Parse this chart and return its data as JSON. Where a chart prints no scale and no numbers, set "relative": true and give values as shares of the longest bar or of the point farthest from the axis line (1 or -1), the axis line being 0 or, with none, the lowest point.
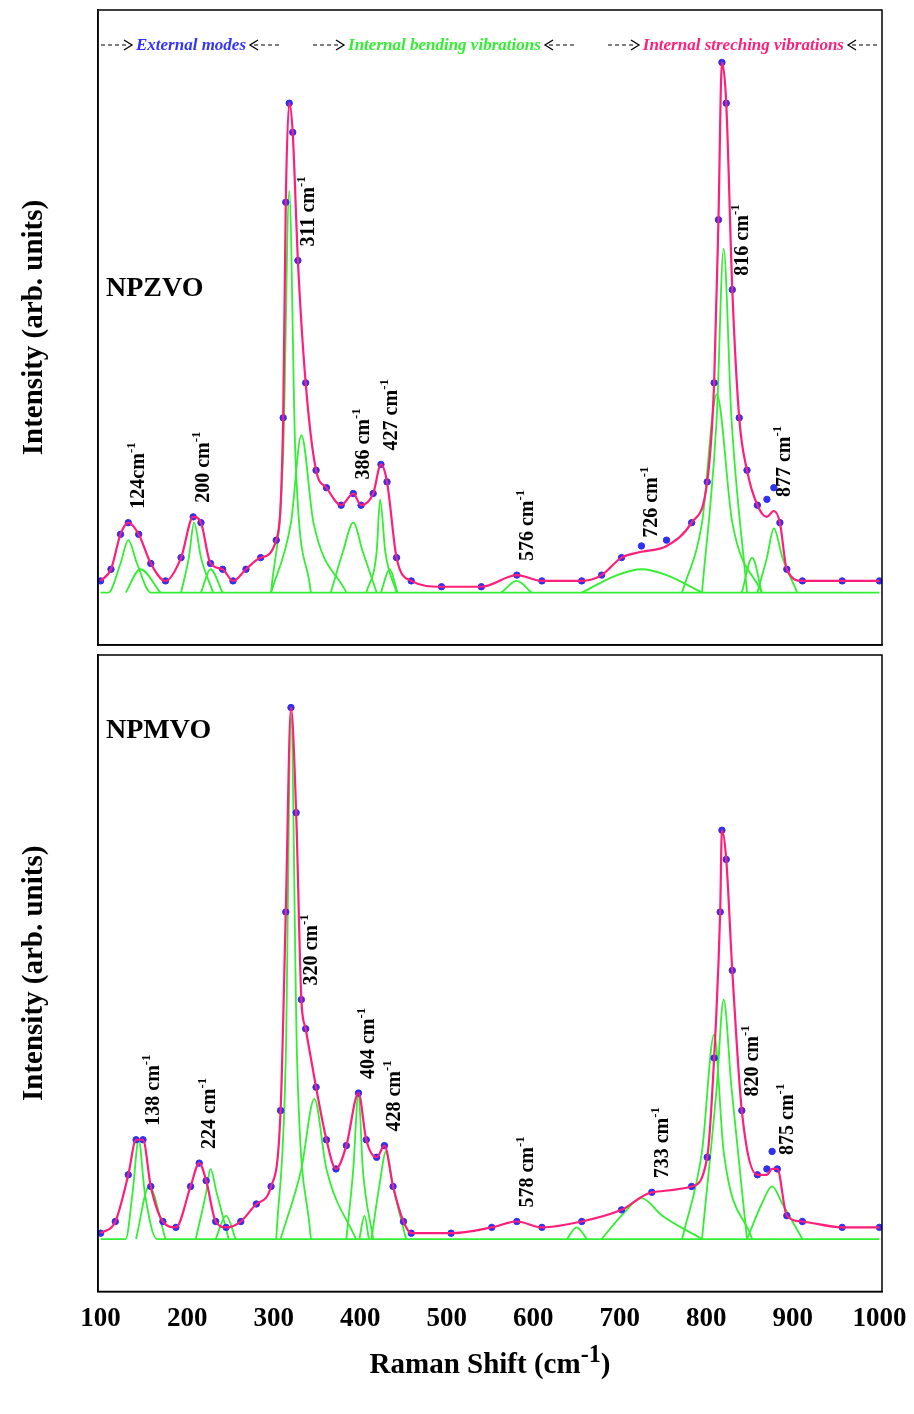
{
  "chart_data": [
    {
      "type": "line",
      "title": "NPZVO",
      "ylabel": "Intensity (arb. units)",
      "relative": true,
      "xlim": [
        97,
        1003
      ],
      "tick_labels": false,
      "legend": false,
      "grid": false,
      "annotations": [
        "External modes",
        "Internal bending vibrations",
        "Internal streching vibrations",
        {
          "text": "124cm$^{-1}$",
          "x": 132,
          "y": 0.21
        },
        {
          "text": "200 cm$^{-1}$",
          "x": 207,
          "y": 0.22
        },
        {
          "text": "311 cm$^{-1}$",
          "x": 328,
          "y": 0.66
        },
        {
          "text": "386 cm$^{-1}$",
          "x": 392,
          "y": 0.26
        },
        {
          "text": "427 cm$^{-1}$",
          "x": 424,
          "y": 0.31
        },
        {
          "text": "576 cm$^{-1}$",
          "x": 581,
          "y": 0.12
        },
        {
          "text": "726 cm$^{-1}$",
          "x": 725,
          "y": 0.16
        },
        {
          "text": "816 cm$^{-1}$",
          "x": 830,
          "y": 0.61
        },
        {
          "text": "877 cm$^{-1}$",
          "x": 878,
          "y": 0.23
        }
      ],
      "series": [
        {
          "type": "line",
          "color": "#ff1f7a",
          "x": [
            100,
            112,
            123,
            132,
            144,
            158,
            175,
            193,
            207,
            216,
            227,
            241,
            253,
            268,
            285,
            303,
            311,
            314,
            318,
            322,
            328,
            337,
            349,
            361,
            378,
            392,
            401,
            415,
            424,
            431,
            442,
            459,
            494,
            540,
            581,
            610,
            656,
            679,
            702,
            725,
            754,
            783,
            801,
            809,
            814,
            818,
            823,
            830,
            838,
            847,
            859,
            870,
            878,
            885,
            893,
            911,
            957,
            1000
          ],
          "values": [
            0.11,
            0.13,
            0.19,
            0.21,
            0.19,
            0.14,
            0.11,
            0.15,
            0.22,
            0.21,
            0.14,
            0.13,
            0.11,
            0.13,
            0.15,
            0.18,
            0.39,
            0.76,
            0.93,
            0.88,
            0.66,
            0.45,
            0.3,
            0.27,
            0.24,
            0.26,
            0.24,
            0.26,
            0.31,
            0.28,
            0.15,
            0.11,
            0.1,
            0.1,
            0.12,
            0.11,
            0.11,
            0.12,
            0.15,
            0.16,
            0.17,
            0.21,
            0.28,
            0.45,
            0.73,
            1,
            0.93,
            0.61,
            0.39,
            0.3,
            0.24,
            0.22,
            0.23,
            0.21,
            0.13,
            0.11,
            0.11,
            0.11
          ]
        },
        {
          "type": "scatter",
          "marker": "circle",
          "color": "#3030f0",
          "x": [
            100,
            112,
            123,
            132,
            144,
            158,
            175,
            193,
            207,
            216,
            227,
            241,
            253,
            268,
            285,
            303,
            311,
            314,
            318,
            322,
            328,
            337,
            349,
            361,
            378,
            392,
            401,
            415,
            424,
            431,
            442,
            459,
            494,
            540,
            581,
            610,
            656,
            679,
            702,
            725,
            754,
            783,
            801,
            809,
            814,
            818,
            823,
            830,
            838,
            847,
            859,
            870,
            878,
            885,
            893,
            911,
            957,
            1000
          ],
          "values": [
            0.11,
            0.13,
            0.19,
            0.21,
            0.19,
            0.14,
            0.11,
            0.15,
            0.22,
            0.21,
            0.14,
            0.13,
            0.11,
            0.13,
            0.15,
            0.18,
            0.39,
            0.76,
            0.93,
            0.88,
            0.66,
            0.45,
            0.3,
            0.27,
            0.24,
            0.26,
            0.24,
            0.26,
            0.31,
            0.28,
            0.15,
            0.11,
            0.1,
            0.1,
            0.12,
            0.11,
            0.11,
            0.12,
            0.15,
            0.17,
            0.18,
            0.21,
            0.28,
            0.45,
            0.73,
            1,
            0.93,
            0.61,
            0.39,
            0.3,
            0.24,
            0.25,
            0.27,
            0.21,
            0.13,
            0.11,
            0.11,
            0.11
          ]
        },
        {
          "type": "line",
          "color": "#33ee33",
          "x": [
            100,
            109,
            123,
            132,
            142,
            158,
            1000
          ],
          "values": [
            0.09,
            0.09,
            0.14,
            0.18,
            0.14,
            0.09,
            0.09
          ]
        },
        {
          "type": "line",
          "color": "#33ee33",
          "x": [
            129,
            146,
            169
          ],
          "values": [
            0.09,
            0.13,
            0.09
          ]
        },
        {
          "type": "line",
          "color": "#33ee33",
          "x": [
            193,
            202,
            208,
            216,
            230
          ],
          "values": [
            0.09,
            0.15,
            0.21,
            0.15,
            0.09
          ]
        },
        {
          "type": "line",
          "color": "#33ee33",
          "x": [
            216,
            227,
            241
          ],
          "values": [
            0.09,
            0.13,
            0.09
          ]
        },
        {
          "type": "line",
          "color": "#33ee33",
          "x": [
            297,
            311,
            318,
            325,
            343
          ],
          "values": [
            0.09,
            0.33,
            0.78,
            0.33,
            0.09
          ]
        },
        {
          "type": "line",
          "color": "#33ee33",
          "x": [
            297,
            320,
            332,
            346,
            384
          ],
          "values": [
            0.09,
            0.21,
            0.36,
            0.21,
            0.09
          ]
        },
        {
          "type": "line",
          "color": "#33ee33",
          "x": [
            366,
            380,
            392,
            403,
            419
          ],
          "values": [
            0.09,
            0.16,
            0.21,
            0.16,
            0.09
          ]
        },
        {
          "type": "line",
          "color": "#33ee33",
          "x": [
            407,
            419,
            423,
            429,
            442
          ],
          "values": [
            0.09,
            0.16,
            0.25,
            0.16,
            0.09
          ]
        },
        {
          "type": "line",
          "color": "#33ee33",
          "x": [
            424,
            434,
            443
          ],
          "values": [
            0.09,
            0.13,
            0.09
          ]
        },
        {
          "type": "line",
          "color": "#33ee33",
          "x": [
            563,
            581,
            598
          ],
          "values": [
            0.09,
            0.11,
            0.09
          ]
        },
        {
          "type": "line",
          "color": "#33ee33",
          "x": [
            656,
            697,
            725,
            754,
            795
          ],
          "values": [
            0.09,
            0.12,
            0.13,
            0.12,
            0.09
          ]
        },
        {
          "type": "line",
          "color": "#33ee33",
          "x": [
            772,
            795,
            812,
            830,
            864
          ],
          "values": [
            0.09,
            0.21,
            0.43,
            0.21,
            0.09
          ]
        },
        {
          "type": "line",
          "color": "#33ee33",
          "x": [
            795,
            812,
            820,
            829,
            847
          ],
          "values": [
            0.09,
            0.39,
            0.68,
            0.39,
            0.09
          ]
        },
        {
          "type": "line",
          "color": "#33ee33",
          "x": [
            841,
            853,
            864
          ],
          "values": [
            0.09,
            0.15,
            0.09
          ]
        },
        {
          "type": "line",
          "color": "#33ee33",
          "x": [
            859,
            870,
            878,
            888,
            905
          ],
          "values": [
            0.09,
            0.15,
            0.2,
            0.15,
            0.09
          ]
        }
      ]
    },
    {
      "type": "line",
      "title": "NPMVO",
      "ylabel": "Intensity (arb. units)",
      "xlabel": "Raman Shift (cm$^{-1}$)",
      "relative": true,
      "xlim": [
        97,
        1003
      ],
      "xticks": [
        100,
        200,
        300,
        400,
        500,
        600,
        700,
        800,
        900,
        1000
      ],
      "tick_labels": "x",
      "legend": false,
      "grid": false,
      "annotations": [
        {
          "text": "138 cm$^{-1}$",
          "x": 149,
          "y": 0.26
        },
        {
          "text": "224 cm$^{-1}$",
          "x": 214,
          "y": 0.22
        },
        {
          "text": "320 cm$^{-1}$",
          "x": 332,
          "y": 0.5
        },
        {
          "text": "404 cm$^{-1}$",
          "x": 398,
          "y": 0.34
        },
        {
          "text": "428 cm$^{-1}$",
          "x": 428,
          "y": 0.25
        },
        {
          "text": "578 cm$^{-1}$",
          "x": 581,
          "y": 0.12
        },
        {
          "text": "733 cm$^{-1}$",
          "x": 737,
          "y": 0.17
        },
        {
          "text": "820 cm$^{-1}$",
          "x": 841,
          "y": 0.31
        },
        {
          "text": "875 cm$^{-1}$",
          "x": 882,
          "y": 0.21
        }
      ],
      "series": [
        {
          "type": "line",
          "color": "#ff1f7a",
          "x": [
            100,
            117,
            132,
            141,
            149,
            158,
            172,
            187,
            204,
            214,
            222,
            233,
            245,
            262,
            280,
            297,
            308,
            314,
            320,
            326,
            332,
            337,
            349,
            361,
            372,
            384,
            398,
            407,
            419,
            428,
            438,
            450,
            459,
            505,
            552,
            581,
            610,
            656,
            702,
            737,
            783,
            801,
            809,
            816,
            818,
            823,
            830,
            841,
            859,
            870,
            876,
            882,
            893,
            911,
            957,
            1000
          ],
          "values": [
            0.1,
            0.12,
            0.2,
            0.26,
            0.26,
            0.18,
            0.12,
            0.11,
            0.18,
            0.22,
            0.19,
            0.12,
            0.11,
            0.12,
            0.15,
            0.18,
            0.31,
            0.65,
            1,
            0.82,
            0.5,
            0.45,
            0.35,
            0.26,
            0.21,
            0.25,
            0.34,
            0.26,
            0.23,
            0.25,
            0.18,
            0.12,
            0.1,
            0.1,
            0.11,
            0.12,
            0.11,
            0.12,
            0.14,
            0.17,
            0.18,
            0.23,
            0.4,
            0.65,
            0.79,
            0.74,
            0.55,
            0.31,
            0.2,
            0.2,
            0.21,
            0.21,
            0.13,
            0.12,
            0.11,
            0.11
          ]
        },
        {
          "type": "scatter",
          "marker": "circle",
          "color": "#3030f0",
          "x": [
            100,
            117,
            132,
            141,
            149,
            158,
            172,
            187,
            204,
            214,
            222,
            233,
            245,
            262,
            280,
            297,
            308,
            314,
            320,
            326,
            332,
            337,
            349,
            361,
            372,
            384,
            398,
            407,
            419,
            428,
            438,
            450,
            459,
            505,
            552,
            581,
            610,
            656,
            702,
            737,
            783,
            801,
            809,
            816,
            818,
            823,
            830,
            841,
            859,
            870,
            876,
            882,
            893,
            911,
            957,
            1000
          ],
          "values": [
            0.1,
            0.12,
            0.2,
            0.26,
            0.26,
            0.18,
            0.12,
            0.11,
            0.18,
            0.22,
            0.19,
            0.12,
            0.11,
            0.12,
            0.15,
            0.18,
            0.31,
            0.65,
            1,
            0.82,
            0.5,
            0.45,
            0.35,
            0.26,
            0.21,
            0.25,
            0.34,
            0.26,
            0.23,
            0.25,
            0.18,
            0.12,
            0.1,
            0.1,
            0.11,
            0.12,
            0.11,
            0.12,
            0.14,
            0.17,
            0.18,
            0.23,
            0.4,
            0.65,
            0.79,
            0.74,
            0.55,
            0.31,
            0.2,
            0.21,
            0.24,
            0.21,
            0.13,
            0.12,
            0.11,
            0.11
          ]
        },
        {
          "type": "line",
          "color": "#33ee33",
          "x": [
            100,
            129,
            137,
            144,
            151,
            165,
            1000
          ],
          "values": [
            0.09,
            0.09,
            0.17,
            0.26,
            0.17,
            0.09,
            0.09
          ]
        },
        {
          "type": "line",
          "color": "#33ee33",
          "x": [
            141,
            156,
            175
          ],
          "values": [
            0.09,
            0.18,
            0.09
          ]
        },
        {
          "type": "line",
          "color": "#33ee33",
          "x": [
            210,
            222,
            227,
            234,
            248
          ],
          "values": [
            0.09,
            0.17,
            0.21,
            0.17,
            0.09
          ]
        },
        {
          "type": "line",
          "color": "#33ee33",
          "x": [
            233,
            245,
            256
          ],
          "values": [
            0.09,
            0.13,
            0.09
          ]
        },
        {
          "type": "line",
          "color": "#33ee33",
          "x": [
            303,
            314,
            320,
            327,
            343
          ],
          "values": [
            0.09,
            0.4,
            0.99,
            0.4,
            0.09
          ]
        },
        {
          "type": "line",
          "color": "#33ee33",
          "x": [
            308,
            332,
            347,
            361,
            395
          ],
          "values": [
            0.09,
            0.21,
            0.33,
            0.21,
            0.09
          ]
        },
        {
          "type": "line",
          "color": "#33ee33",
          "x": [
            384,
            392,
            398,
            403,
            415
          ],
          "values": [
            0.09,
            0.21,
            0.34,
            0.21,
            0.09
          ]
        },
        {
          "type": "line",
          "color": "#33ee33",
          "x": [
            399,
            405,
            410
          ],
          "values": [
            0.09,
            0.13,
            0.09
          ]
        },
        {
          "type": "line",
          "color": "#33ee33",
          "x": [
            413,
            422,
            430,
            438,
            453
          ],
          "values": [
            0.09,
            0.18,
            0.24,
            0.18,
            0.09
          ]
        },
        {
          "type": "line",
          "color": "#33ee33",
          "x": [
            639,
            650,
            662
          ],
          "values": [
            0.09,
            0.11,
            0.09
          ]
        },
        {
          "type": "line",
          "color": "#33ee33",
          "x": [
            679,
            702,
            725,
            749,
            795
          ],
          "values": [
            0.09,
            0.13,
            0.16,
            0.13,
            0.09
          ]
        },
        {
          "type": "line",
          "color": "#33ee33",
          "x": [
            772,
            795,
            809,
            820,
            853
          ],
          "values": [
            0.09,
            0.24,
            0.44,
            0.24,
            0.09
          ]
        },
        {
          "type": "line",
          "color": "#33ee33",
          "x": [
            795,
            812,
            820,
            829,
            847
          ],
          "values": [
            0.09,
            0.35,
            0.5,
            0.35,
            0.09
          ]
        },
        {
          "type": "line",
          "color": "#33ee33",
          "x": [
            847,
            864,
            876,
            888,
            911
          ],
          "values": [
            0.09,
            0.15,
            0.18,
            0.15,
            0.09
          ]
        }
      ]
    }
  ]
}
